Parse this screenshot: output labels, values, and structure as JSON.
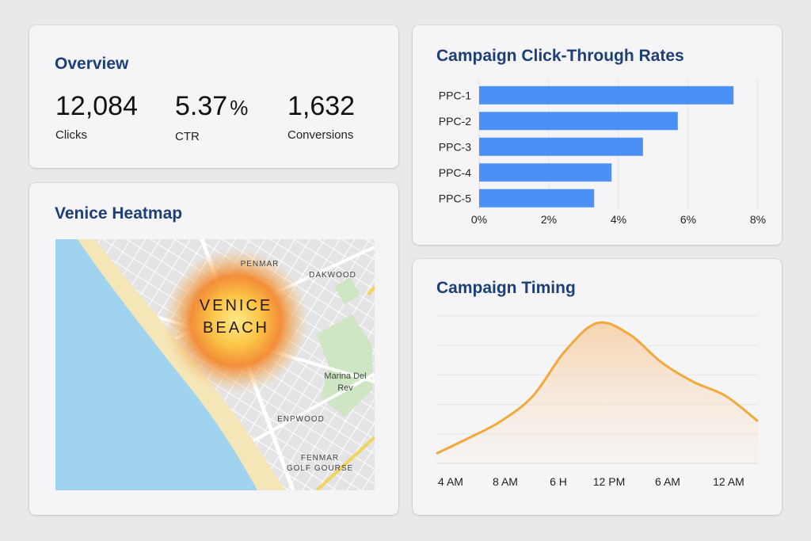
{
  "overview": {
    "title": "Overview",
    "metrics": [
      {
        "value": "12,084",
        "unit": "",
        "label": "Clicks"
      },
      {
        "value": "5.37",
        "unit": "%",
        "label": "CTR"
      },
      {
        "value": "1,632",
        "unit": "",
        "label": "Conversions"
      }
    ]
  },
  "heatmap": {
    "title": "Venice Heatmap",
    "hotspot_label_line1": "VENICE",
    "hotspot_label_line2": "BEACH",
    "places": {
      "penmar": "PENMAR",
      "dakwood": "DAKWOOD",
      "marina_line1": "Marina Del",
      "marina_line2": "Rev",
      "enpwood": "ENPWOOD",
      "fenmar_line1": "FENMAR",
      "fenmar_line2": "GOLF GOURSE"
    },
    "colors": {
      "water": "#9fd3ef",
      "land": "#e6e6e6",
      "park": "#cfe6c4",
      "beach": "#f5e6b8",
      "road_major": "#f2d35b"
    }
  },
  "chart_data": [
    {
      "type": "bar",
      "orientation": "horizontal",
      "title": "Campaign Click-Through Rates",
      "categories": [
        "PPC-1",
        "PPC-2",
        "PPC-3",
        "PPC-4",
        "PPC-5"
      ],
      "values": [
        7.3,
        5.7,
        4.7,
        3.8,
        3.3
      ],
      "xlim": [
        0,
        8
      ],
      "xticks": [
        "0%",
        "2%",
        "4%",
        "6%",
        "8%"
      ],
      "tick_values": [
        0,
        2,
        4,
        6,
        8
      ],
      "color": "#4a90f5",
      "grid": true
    },
    {
      "type": "area",
      "title": "Campaign Timing",
      "xticks": [
        "4 AM",
        "8 AM",
        "6 H",
        "12 PM",
        "6 AM",
        "12 AM"
      ],
      "x": [
        0,
        1,
        2,
        3,
        4,
        5,
        6,
        7,
        8,
        9,
        10
      ],
      "values": [
        7,
        18,
        30,
        48,
        80,
        100,
        92,
        72,
        58,
        48,
        30
      ],
      "ylim": [
        0,
        105
      ],
      "color": "#f2a93b",
      "grid": true
    }
  ]
}
